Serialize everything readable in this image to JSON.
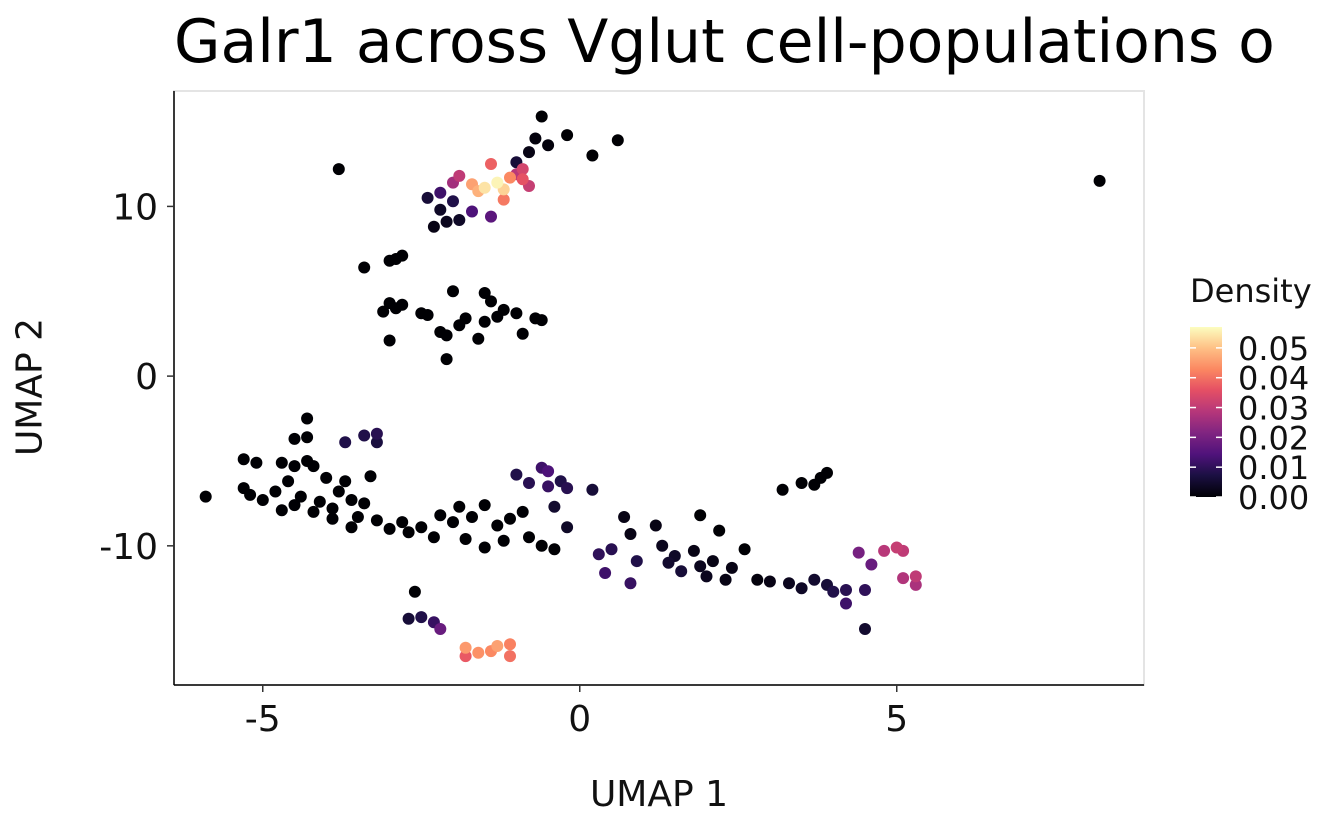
{
  "chart_data": {
    "type": "scatter",
    "title": "Galr1 across Vglut cell-populations o",
    "xlabel": "UMAP 1",
    "ylabel": "UMAP 2",
    "xlim": [
      -6.4,
      8.9
    ],
    "ylim": [
      -18.2,
      16.8
    ],
    "xticks": [
      -5,
      0,
      5
    ],
    "xtick_labels": [
      "-5",
      "0",
      "5"
    ],
    "yticks": [
      -10,
      0,
      10
    ],
    "ytick_labels": [
      "-10",
      "0",
      "10"
    ],
    "grid": false,
    "legend": {
      "title": "Density",
      "position": "right",
      "type": "colorbar",
      "colormap": "magma",
      "range": [
        0,
        0.057
      ],
      "ticks": [
        0.0,
        0.01,
        0.02,
        0.03,
        0.04,
        0.05
      ],
      "tick_labels": [
        "0.00",
        "0.01",
        "0.02",
        "0.03",
        "0.04",
        "0.05"
      ]
    },
    "points": [
      {
        "x": -0.6,
        "y": 15.3,
        "d": 0.0
      },
      {
        "x": -0.7,
        "y": 14.0,
        "d": 0.001
      },
      {
        "x": -0.5,
        "y": 13.6,
        "d": 0.001
      },
      {
        "x": -0.2,
        "y": 14.2,
        "d": 0.0
      },
      {
        "x": 0.6,
        "y": 13.9,
        "d": 0.0
      },
      {
        "x": 0.2,
        "y": 13.0,
        "d": 0.0
      },
      {
        "x": -0.8,
        "y": 13.2,
        "d": 0.002
      },
      {
        "x": -1.0,
        "y": 12.6,
        "d": 0.006
      },
      {
        "x": -3.8,
        "y": 12.2,
        "d": 0.0
      },
      {
        "x": 8.2,
        "y": 11.5,
        "d": 0.0
      },
      {
        "x": -1.4,
        "y": 12.5,
        "d": 0.038
      },
      {
        "x": -1.9,
        "y": 11.8,
        "d": 0.03
      },
      {
        "x": -1.7,
        "y": 11.3,
        "d": 0.046
      },
      {
        "x": -1.5,
        "y": 11.1,
        "d": 0.054
      },
      {
        "x": -1.3,
        "y": 11.4,
        "d": 0.056
      },
      {
        "x": -1.2,
        "y": 11.0,
        "d": 0.052
      },
      {
        "x": -1.6,
        "y": 10.9,
        "d": 0.048
      },
      {
        "x": -1.1,
        "y": 11.7,
        "d": 0.043
      },
      {
        "x": -0.9,
        "y": 11.6,
        "d": 0.036
      },
      {
        "x": -0.8,
        "y": 11.2,
        "d": 0.031
      },
      {
        "x": -1.2,
        "y": 10.4,
        "d": 0.041
      },
      {
        "x": -2.0,
        "y": 11.4,
        "d": 0.026
      },
      {
        "x": -2.2,
        "y": 10.8,
        "d": 0.012
      },
      {
        "x": -2.4,
        "y": 10.5,
        "d": 0.006
      },
      {
        "x": -2.0,
        "y": 10.3,
        "d": 0.008
      },
      {
        "x": -1.7,
        "y": 9.7,
        "d": 0.014
      },
      {
        "x": -1.4,
        "y": 9.4,
        "d": 0.016
      },
      {
        "x": -2.2,
        "y": 9.8,
        "d": 0.004
      },
      {
        "x": -2.1,
        "y": 9.1,
        "d": 0.003
      },
      {
        "x": -2.3,
        "y": 8.8,
        "d": 0.002
      },
      {
        "x": -1.9,
        "y": 9.2,
        "d": 0.004
      },
      {
        "x": -0.9,
        "y": 12.2,
        "d": 0.033
      },
      {
        "x": -1.0,
        "y": 11.9,
        "d": 0.029
      },
      {
        "x": -3.4,
        "y": 6.4,
        "d": 0.0
      },
      {
        "x": -3.0,
        "y": 6.8,
        "d": 0.0
      },
      {
        "x": -2.8,
        "y": 7.1,
        "d": 0.0
      },
      {
        "x": -2.9,
        "y": 6.9,
        "d": 0.0
      },
      {
        "x": -3.0,
        "y": 4.3,
        "d": 0.0
      },
      {
        "x": -2.9,
        "y": 4.0,
        "d": 0.0
      },
      {
        "x": -2.8,
        "y": 4.2,
        "d": 0.0
      },
      {
        "x": -3.1,
        "y": 3.8,
        "d": 0.0
      },
      {
        "x": -2.5,
        "y": 3.7,
        "d": 0.0
      },
      {
        "x": -2.4,
        "y": 3.6,
        "d": 0.0
      },
      {
        "x": -2.0,
        "y": 5.0,
        "d": 0.0
      },
      {
        "x": -1.5,
        "y": 4.9,
        "d": 0.0
      },
      {
        "x": -1.4,
        "y": 4.4,
        "d": 0.0
      },
      {
        "x": -1.3,
        "y": 3.5,
        "d": 0.0
      },
      {
        "x": -1.5,
        "y": 3.2,
        "d": 0.0
      },
      {
        "x": -1.2,
        "y": 3.9,
        "d": 0.0
      },
      {
        "x": -1.0,
        "y": 3.7,
        "d": 0.0
      },
      {
        "x": -0.7,
        "y": 3.4,
        "d": 0.0
      },
      {
        "x": -0.6,
        "y": 3.3,
        "d": 0.0
      },
      {
        "x": -1.8,
        "y": 3.4,
        "d": 0.0
      },
      {
        "x": -1.9,
        "y": 3.0,
        "d": 0.0
      },
      {
        "x": -2.2,
        "y": 2.6,
        "d": 0.0
      },
      {
        "x": -2.1,
        "y": 2.4,
        "d": 0.0
      },
      {
        "x": -1.6,
        "y": 2.2,
        "d": 0.0
      },
      {
        "x": -0.9,
        "y": 2.5,
        "d": 0.0
      },
      {
        "x": -3.0,
        "y": 2.1,
        "d": 0.0
      },
      {
        "x": -2.1,
        "y": 1.0,
        "d": 0.0
      },
      {
        "x": -4.3,
        "y": -2.5,
        "d": 0.0
      },
      {
        "x": -4.5,
        "y": -3.7,
        "d": 0.0
      },
      {
        "x": -4.3,
        "y": -3.6,
        "d": 0.0
      },
      {
        "x": -3.7,
        "y": -3.9,
        "d": 0.008
      },
      {
        "x": -3.4,
        "y": -3.5,
        "d": 0.008
      },
      {
        "x": -3.2,
        "y": -3.4,
        "d": 0.009
      },
      {
        "x": -3.2,
        "y": -3.9,
        "d": 0.007
      },
      {
        "x": -5.3,
        "y": -4.9,
        "d": 0.0
      },
      {
        "x": -5.1,
        "y": -5.1,
        "d": 0.0
      },
      {
        "x": -4.7,
        "y": -5.1,
        "d": 0.0
      },
      {
        "x": -4.5,
        "y": -5.3,
        "d": 0.0
      },
      {
        "x": -4.3,
        "y": -5.0,
        "d": 0.0
      },
      {
        "x": -4.2,
        "y": -5.3,
        "d": 0.0
      },
      {
        "x": -4.0,
        "y": -6.0,
        "d": 0.0
      },
      {
        "x": -3.7,
        "y": -6.2,
        "d": 0.0
      },
      {
        "x": -3.3,
        "y": -5.9,
        "d": 0.0
      },
      {
        "x": -5.9,
        "y": -7.1,
        "d": 0.0
      },
      {
        "x": -5.3,
        "y": -6.6,
        "d": 0.0
      },
      {
        "x": -5.2,
        "y": -7.0,
        "d": 0.0
      },
      {
        "x": -5.0,
        "y": -7.3,
        "d": 0.0
      },
      {
        "x": -4.8,
        "y": -6.8,
        "d": 0.0
      },
      {
        "x": -4.6,
        "y": -6.2,
        "d": 0.0
      },
      {
        "x": -4.5,
        "y": -7.6,
        "d": 0.0
      },
      {
        "x": -4.4,
        "y": -7.1,
        "d": 0.0
      },
      {
        "x": -4.2,
        "y": -8.0,
        "d": 0.0
      },
      {
        "x": -4.1,
        "y": -7.4,
        "d": 0.0
      },
      {
        "x": -3.9,
        "y": -7.8,
        "d": 0.0
      },
      {
        "x": -3.8,
        "y": -6.8,
        "d": 0.0
      },
      {
        "x": -3.6,
        "y": -7.3,
        "d": 0.0
      },
      {
        "x": -3.5,
        "y": -8.3,
        "d": 0.0
      },
      {
        "x": -3.4,
        "y": -7.5,
        "d": 0.0
      },
      {
        "x": -3.2,
        "y": -8.5,
        "d": 0.0
      },
      {
        "x": -3.0,
        "y": -9.0,
        "d": 0.0
      },
      {
        "x": -2.8,
        "y": -8.6,
        "d": 0.0
      },
      {
        "x": -2.7,
        "y": -9.2,
        "d": 0.0
      },
      {
        "x": -2.5,
        "y": -8.9,
        "d": 0.0
      },
      {
        "x": -3.9,
        "y": -8.4,
        "d": 0.0
      },
      {
        "x": -3.6,
        "y": -8.9,
        "d": 0.0
      },
      {
        "x": -4.7,
        "y": -7.9,
        "d": 0.0
      },
      {
        "x": -2.2,
        "y": -8.2,
        "d": 0.0
      },
      {
        "x": -2.0,
        "y": -8.6,
        "d": 0.0
      },
      {
        "x": -1.9,
        "y": -7.7,
        "d": 0.0
      },
      {
        "x": -1.7,
        "y": -8.3,
        "d": 0.0
      },
      {
        "x": -1.5,
        "y": -7.6,
        "d": 0.0
      },
      {
        "x": -1.3,
        "y": -8.8,
        "d": 0.0
      },
      {
        "x": -1.1,
        "y": -8.4,
        "d": 0.0
      },
      {
        "x": -0.9,
        "y": -8.0,
        "d": 0.0
      },
      {
        "x": -2.3,
        "y": -9.5,
        "d": 0.0
      },
      {
        "x": -1.8,
        "y": -9.6,
        "d": 0.0
      },
      {
        "x": -1.5,
        "y": -10.1,
        "d": 0.0
      },
      {
        "x": -1.2,
        "y": -9.7,
        "d": 0.0
      },
      {
        "x": -0.8,
        "y": -9.5,
        "d": 0.0
      },
      {
        "x": -0.6,
        "y": -10.0,
        "d": 0.0
      },
      {
        "x": -0.4,
        "y": -10.2,
        "d": 0.0
      },
      {
        "x": -1.0,
        "y": -5.8,
        "d": 0.008
      },
      {
        "x": -0.8,
        "y": -6.3,
        "d": 0.009
      },
      {
        "x": -0.6,
        "y": -5.4,
        "d": 0.012
      },
      {
        "x": -0.5,
        "y": -5.6,
        "d": 0.014
      },
      {
        "x": -0.5,
        "y": -6.5,
        "d": 0.011
      },
      {
        "x": -0.3,
        "y": -6.2,
        "d": 0.008
      },
      {
        "x": -0.2,
        "y": -6.6,
        "d": 0.009
      },
      {
        "x": 0.2,
        "y": -6.7,
        "d": 0.006
      },
      {
        "x": -0.4,
        "y": -7.7,
        "d": 0.005
      },
      {
        "x": -0.2,
        "y": -8.9,
        "d": 0.004
      },
      {
        "x": 0.3,
        "y": -10.5,
        "d": 0.01
      },
      {
        "x": 0.5,
        "y": -10.2,
        "d": 0.009
      },
      {
        "x": 0.4,
        "y": -11.6,
        "d": 0.012
      },
      {
        "x": 0.8,
        "y": -12.2,
        "d": 0.011
      },
      {
        "x": 0.9,
        "y": -10.9,
        "d": 0.008
      },
      {
        "x": 0.7,
        "y": -8.3,
        "d": 0.002
      },
      {
        "x": 1.2,
        "y": -8.8,
        "d": 0.002
      },
      {
        "x": 0.8,
        "y": -9.3,
        "d": 0.002
      },
      {
        "x": 1.3,
        "y": -10.0,
        "d": 0.003
      },
      {
        "x": 1.4,
        "y": -11.0,
        "d": 0.005
      },
      {
        "x": 1.5,
        "y": -10.6,
        "d": 0.004
      },
      {
        "x": 1.6,
        "y": -11.5,
        "d": 0.006
      },
      {
        "x": 1.8,
        "y": -10.3,
        "d": 0.002
      },
      {
        "x": 1.9,
        "y": -11.2,
        "d": 0.003
      },
      {
        "x": 2.0,
        "y": -11.8,
        "d": 0.003
      },
      {
        "x": 2.1,
        "y": -10.9,
        "d": 0.002
      },
      {
        "x": 2.3,
        "y": -12.0,
        "d": 0.002
      },
      {
        "x": 2.4,
        "y": -11.3,
        "d": 0.002
      },
      {
        "x": 2.6,
        "y": -10.2,
        "d": 0.0
      },
      {
        "x": 2.2,
        "y": -9.1,
        "d": 0.0
      },
      {
        "x": 1.9,
        "y": -8.2,
        "d": 0.0
      },
      {
        "x": 2.8,
        "y": -12.0,
        "d": 0.001
      },
      {
        "x": 3.0,
        "y": -12.1,
        "d": 0.002
      },
      {
        "x": 3.2,
        "y": -6.7,
        "d": 0.0
      },
      {
        "x": 3.5,
        "y": -6.3,
        "d": 0.0
      },
      {
        "x": 3.7,
        "y": -6.4,
        "d": 0.0
      },
      {
        "x": 3.8,
        "y": -6.0,
        "d": 0.0
      },
      {
        "x": 3.9,
        "y": -5.7,
        "d": 0.0
      },
      {
        "x": 3.3,
        "y": -12.2,
        "d": 0.003
      },
      {
        "x": 3.5,
        "y": -12.5,
        "d": 0.004
      },
      {
        "x": 3.7,
        "y": -12.0,
        "d": 0.005
      },
      {
        "x": 3.9,
        "y": -12.3,
        "d": 0.006
      },
      {
        "x": 4.0,
        "y": -12.7,
        "d": 0.008
      },
      {
        "x": 4.2,
        "y": -12.6,
        "d": 0.009
      },
      {
        "x": 4.2,
        "y": -13.4,
        "d": 0.012
      },
      {
        "x": 4.5,
        "y": -12.6,
        "d": 0.01
      },
      {
        "x": 4.6,
        "y": -11.1,
        "d": 0.018
      },
      {
        "x": 4.4,
        "y": -10.4,
        "d": 0.02
      },
      {
        "x": 4.5,
        "y": -14.9,
        "d": 0.005
      },
      {
        "x": 4.8,
        "y": -10.3,
        "d": 0.029
      },
      {
        "x": 5.0,
        "y": -10.1,
        "d": 0.031
      },
      {
        "x": 5.1,
        "y": -10.3,
        "d": 0.03
      },
      {
        "x": 5.1,
        "y": -11.9,
        "d": 0.028
      },
      {
        "x": 5.3,
        "y": -11.8,
        "d": 0.03
      },
      {
        "x": 5.3,
        "y": -12.3,
        "d": 0.027
      },
      {
        "x": -2.6,
        "y": -12.7,
        "d": 0.0
      },
      {
        "x": -2.7,
        "y": -14.3,
        "d": 0.006
      },
      {
        "x": -2.5,
        "y": -14.2,
        "d": 0.008
      },
      {
        "x": -2.3,
        "y": -14.5,
        "d": 0.011
      },
      {
        "x": -2.2,
        "y": -14.9,
        "d": 0.018
      },
      {
        "x": -1.8,
        "y": -16.0,
        "d": 0.045
      },
      {
        "x": -1.6,
        "y": -16.3,
        "d": 0.044
      },
      {
        "x": -1.4,
        "y": -16.2,
        "d": 0.043
      },
      {
        "x": -1.3,
        "y": -15.9,
        "d": 0.046
      },
      {
        "x": -1.1,
        "y": -16.5,
        "d": 0.04
      },
      {
        "x": -1.1,
        "y": -15.8,
        "d": 0.042
      },
      {
        "x": -1.8,
        "y": -16.5,
        "d": 0.037
      }
    ]
  }
}
